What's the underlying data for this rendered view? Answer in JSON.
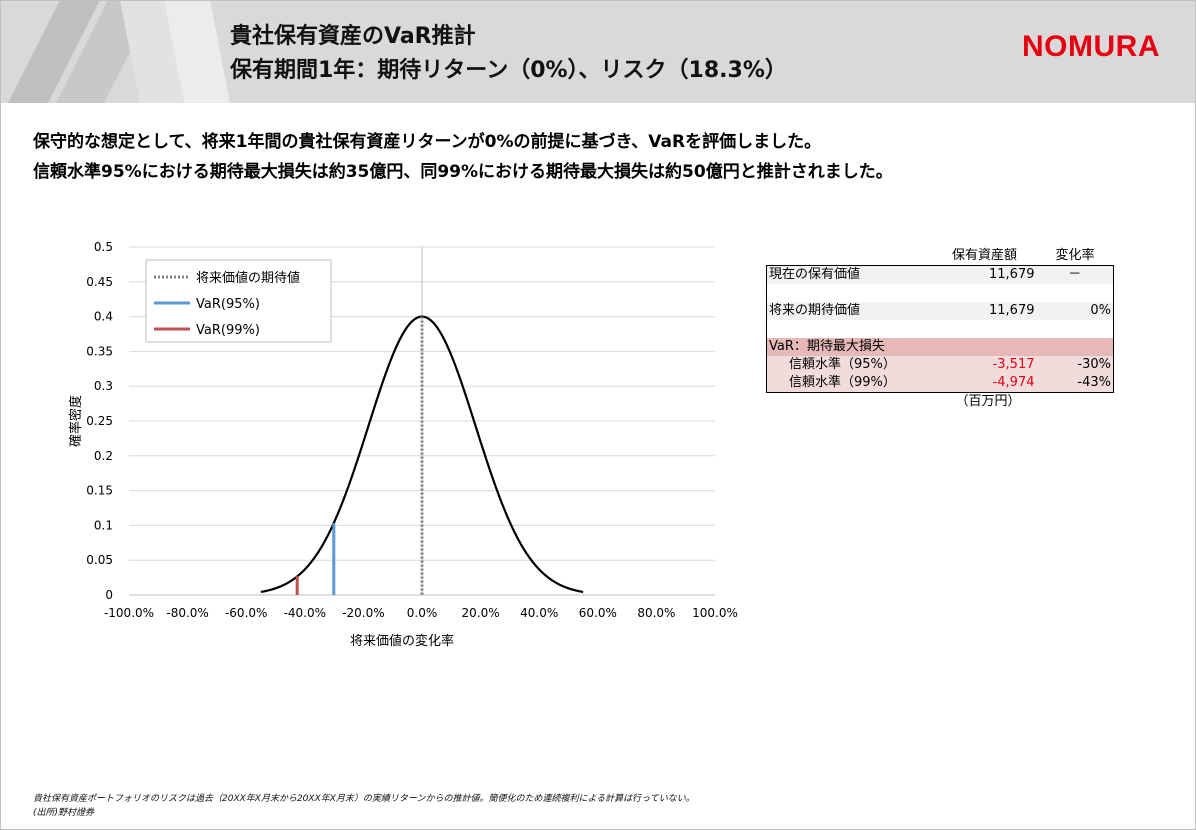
{
  "header": {
    "title_line1": "貴社保有資産のVaR推計",
    "title_line2": "保有期間1年：期待リターン（0%）、リスク（18.3%）",
    "logo": "NOMURA",
    "logo_color": "#e60012"
  },
  "lead": {
    "line1": "保守的な想定として、将来1年間の貴社保有資産リターンが0%の前提に基づき、VaRを評価しました。",
    "line2": "信頼水準95%における期待最大損失は約35億円、同99%における期待最大損失は約50億円と推計されました。"
  },
  "chart_data": {
    "type": "line",
    "xlabel": "将来価値の変化率",
    "ylabel": "確率密度",
    "xlim": [
      -100,
      100
    ],
    "ylim": [
      0,
      0.5
    ],
    "x_ticks": [
      "-100.0%",
      "-80.0%",
      "-60.0%",
      "-40.0%",
      "-20.0%",
      "0.0%",
      "20.0%",
      "40.0%",
      "60.0%",
      "80.0%",
      "100.0%"
    ],
    "y_ticks": [
      "0",
      "0.05",
      "0.1",
      "0.15",
      "0.2",
      "0.25",
      "0.3",
      "0.35",
      "0.4",
      "0.45",
      "0.5"
    ],
    "grid": "horizontal",
    "curve": {
      "mean": 0,
      "peak": 0.4,
      "sd_percent": 18.3,
      "x_range": [
        -55,
        55
      ],
      "color": "#000000"
    },
    "legend_position": "top-left",
    "legend": [
      {
        "name": "将来価値の期待値",
        "style": "dotted",
        "color": "#808080"
      },
      {
        "name": "VaR(95%)",
        "style": "solid",
        "color": "#5b9bd5"
      },
      {
        "name": "VaR(99%)",
        "style": "solid",
        "color": "#c0504d"
      }
    ],
    "markers": [
      {
        "name": "将来価値の期待値",
        "x": 0,
        "y": 0.4,
        "color": "#808080",
        "style": "dotted"
      },
      {
        "name": "VaR(95%)",
        "x": -30.1,
        "y": 0.103,
        "color": "#5b9bd5",
        "style": "solid"
      },
      {
        "name": "VaR(99%)",
        "x": -42.6,
        "y": 0.027,
        "color": "#c0504d",
        "style": "solid"
      }
    ]
  },
  "table": {
    "headers": [
      "",
      "保有資産額",
      "変化率"
    ],
    "rows": [
      {
        "label": "現在の保有価値",
        "value": "11,679",
        "rate": "－"
      },
      {
        "label": "将来の期待価値",
        "value": "11,679",
        "rate": "0%"
      },
      {
        "label": "VaR：期待最大損失",
        "value": "",
        "rate": ""
      },
      {
        "label": "信頼水準（95%）",
        "value": "-3,517",
        "rate": "-30%"
      },
      {
        "label": "信頼水準（99%）",
        "value": "-4,974",
        "rate": "-43%"
      }
    ],
    "unit": "（百万円）",
    "negative_color": "#e60012"
  },
  "footnote": {
    "line1": "貴社保有資産ポートフォリオのリスクは過去（20XX年X月末から20XX年X月末）の実績リターンからの推計値。簡便化のため連続複利による計算は行っていない。",
    "line2": "(出所)野村證券"
  }
}
